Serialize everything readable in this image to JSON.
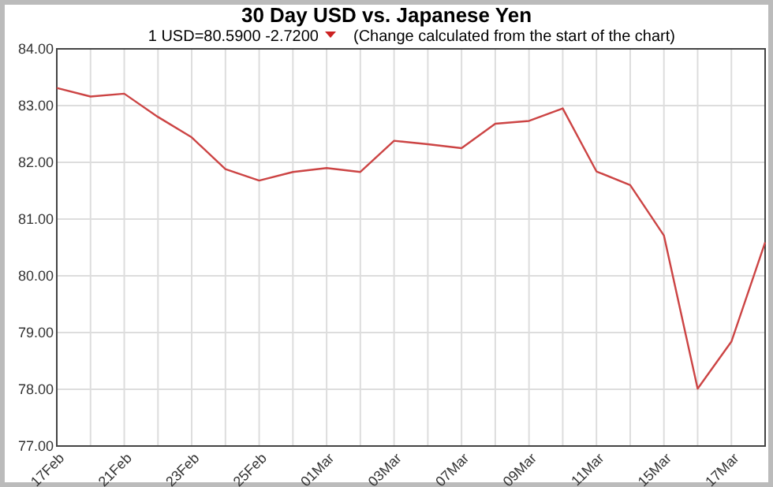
{
  "chart_data": {
    "type": "line",
    "title": "30 Day USD vs. Japanese Yen",
    "subtitle": "1 USD=80.5900  -2.7200",
    "annotations": [
      "(Change calculated from the start of the chart)"
    ],
    "categories": [
      "17Feb",
      null,
      "21Feb",
      null,
      "23Feb",
      null,
      "25Feb",
      null,
      "01Mar",
      null,
      "03Mar",
      null,
      "07Mar",
      null,
      "09Mar",
      null,
      "11Mar",
      null,
      "15Mar",
      null,
      "17Mar",
      null
    ],
    "series": [
      {
        "color": "#cc4444",
        "values": [
          83.31,
          83.16,
          83.21,
          82.8,
          82.44,
          81.88,
          81.68,
          81.83,
          81.9,
          81.83,
          82.38,
          82.32,
          82.25,
          82.68,
          82.73,
          82.95,
          81.84,
          81.6,
          80.71,
          78.01,
          78.84,
          80.59
        ]
      }
    ],
    "ylim": [
      77,
      84
    ],
    "yticks": [
      {
        "value": 77,
        "label": "77.00"
      },
      {
        "value": 78,
        "label": "78.00"
      },
      {
        "value": 79,
        "label": "79.00"
      },
      {
        "value": 80,
        "label": "80.00"
      },
      {
        "value": 81,
        "label": "81.00"
      },
      {
        "value": 82,
        "label": "82.00"
      },
      {
        "value": 83,
        "label": "83.00"
      },
      {
        "value": 84,
        "label": "84.00"
      }
    ],
    "grid": true,
    "marker": "none",
    "line_style": "solid"
  }
}
